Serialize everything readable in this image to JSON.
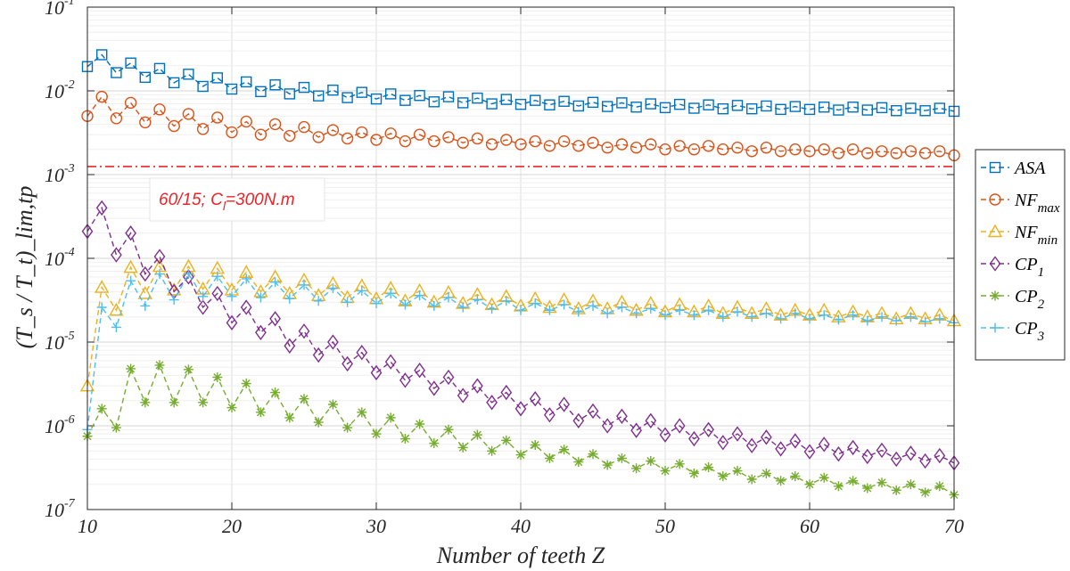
{
  "chart_data": {
    "type": "line",
    "yscale": "log",
    "xlabel": "Number of teeth Z",
    "ylabel": "(T_s / T_t)_lim,tp",
    "xlim": [
      10,
      70
    ],
    "ylim": [
      1e-07,
      0.1
    ],
    "xticks": [
      "10",
      "20",
      "30",
      "40",
      "50",
      "60",
      "70"
    ],
    "yticks": [
      {
        "base": "10",
        "exp": "-7",
        "value": 1e-07
      },
      {
        "base": "10",
        "exp": "-6",
        "value": 1e-06
      },
      {
        "base": "10",
        "exp": "-5",
        "value": 1e-05
      },
      {
        "base": "10",
        "exp": "-4",
        "value": 0.0001
      },
      {
        "base": "10",
        "exp": "-3",
        "value": 0.001
      },
      {
        "base": "10",
        "exp": "-2",
        "value": 0.01
      },
      {
        "base": "10",
        "exp": "-1",
        "value": 0.1
      }
    ],
    "grid": true,
    "legend_position": "right",
    "reference_line": {
      "y": 0.00125,
      "color": "#e8262a",
      "style": "dash-dot"
    },
    "annotation": {
      "text_main": "60/15; C",
      "text_sub": "l",
      "text_tail": "=300N.m",
      "color": "#e8262a"
    },
    "x": [
      10,
      11,
      12,
      13,
      14,
      15,
      16,
      17,
      18,
      19,
      20,
      21,
      22,
      23,
      24,
      25,
      26,
      27,
      28,
      29,
      30,
      31,
      32,
      33,
      34,
      35,
      36,
      37,
      38,
      39,
      40,
      41,
      42,
      43,
      44,
      45,
      46,
      47,
      48,
      49,
      50,
      51,
      52,
      53,
      54,
      55,
      56,
      57,
      58,
      59,
      60,
      61,
      62,
      63,
      64,
      65,
      66,
      67,
      68,
      69,
      70
    ],
    "series": [
      {
        "name": "ASA",
        "label_main": "ASA",
        "label_sub": "",
        "color": "#0072bd",
        "marker": "square",
        "values": [
          0.0195,
          0.027,
          0.0165,
          0.0215,
          0.0145,
          0.0185,
          0.0125,
          0.0158,
          0.0113,
          0.0143,
          0.0105,
          0.0128,
          0.0098,
          0.0118,
          0.0092,
          0.011,
          0.0087,
          0.0102,
          0.0083,
          0.0096,
          0.008,
          0.0092,
          0.0077,
          0.0088,
          0.0074,
          0.0085,
          0.0072,
          0.0082,
          0.007,
          0.0079,
          0.0069,
          0.0077,
          0.0068,
          0.0075,
          0.0066,
          0.0073,
          0.0065,
          0.0072,
          0.0064,
          0.007,
          0.0063,
          0.0069,
          0.0062,
          0.0068,
          0.0061,
          0.0067,
          0.0061,
          0.0066,
          0.006,
          0.0065,
          0.006,
          0.0064,
          0.0059,
          0.0064,
          0.0059,
          0.0063,
          0.0058,
          0.0062,
          0.0058,
          0.0062,
          0.0057
        ]
      },
      {
        "name": "NFmax",
        "label_main": "NF",
        "label_sub": "max",
        "color": "#d95319",
        "marker": "circle",
        "values": [
          0.005,
          0.0085,
          0.0047,
          0.0072,
          0.0042,
          0.006,
          0.0038,
          0.0053,
          0.0035,
          0.0048,
          0.0032,
          0.0043,
          0.003,
          0.004,
          0.0029,
          0.0037,
          0.0028,
          0.0034,
          0.0027,
          0.0032,
          0.0026,
          0.0031,
          0.0025,
          0.003,
          0.0025,
          0.0028,
          0.0024,
          0.0027,
          0.0023,
          0.0026,
          0.0023,
          0.0025,
          0.0022,
          0.0025,
          0.0022,
          0.0024,
          0.0021,
          0.0023,
          0.0021,
          0.0023,
          0.002,
          0.0022,
          0.002,
          0.0022,
          0.002,
          0.0021,
          0.0019,
          0.0021,
          0.0019,
          0.002,
          0.0019,
          0.002,
          0.0018,
          0.002,
          0.0018,
          0.0019,
          0.0018,
          0.0019,
          0.0018,
          0.0019,
          0.0017
        ]
      },
      {
        "name": "NFmin",
        "label_main": "NF",
        "label_sub": "min",
        "color": "#edb120",
        "marker": "triangle",
        "values": [
          3e-06,
          4.5e-05,
          2.4e-05,
          7.8e-05,
          3.8e-05,
          8e-05,
          4.2e-05,
          8e-05,
          4.3e-05,
          7.6e-05,
          4.2e-05,
          6.8e-05,
          4e-05,
          6e-05,
          3.8e-05,
          5.5e-05,
          3.6e-05,
          5e-05,
          3.4e-05,
          4.7e-05,
          3.3e-05,
          4.4e-05,
          3.1e-05,
          4.1e-05,
          3e-05,
          3.9e-05,
          2.9e-05,
          3.7e-05,
          2.8e-05,
          3.5e-05,
          2.7e-05,
          3.3e-05,
          2.6e-05,
          3.2e-05,
          2.5e-05,
          3.1e-05,
          2.5e-05,
          3e-05,
          2.4e-05,
          2.9e-05,
          2.3e-05,
          2.8e-05,
          2.3e-05,
          2.7e-05,
          2.2e-05,
          2.6e-05,
          2.2e-05,
          2.5e-05,
          2.1e-05,
          2.4e-05,
          2.1e-05,
          2.4e-05,
          2e-05,
          2.3e-05,
          2e-05,
          2.2e-05,
          1.9e-05,
          2.2e-05,
          1.9e-05,
          2.1e-05,
          1.8e-05
        ]
      },
      {
        "name": "CP1",
        "label_main": "CP",
        "label_sub": "1",
        "color": "#7e2f8e",
        "marker": "diamond",
        "values": [
          0.00021,
          0.0004,
          0.00011,
          0.0002,
          6.5e-05,
          0.000105,
          4e-05,
          6e-05,
          2.6e-05,
          3.8e-05,
          1.7e-05,
          2.6e-05,
          1.3e-05,
          1.9e-05,
          9e-06,
          1.35e-05,
          7e-06,
          1e-05,
          5.5e-06,
          7.5e-06,
          4.3e-06,
          5.8e-06,
          3.5e-06,
          4.6e-06,
          2.8e-06,
          3.8e-06,
          2.3e-06,
          3e-06,
          1.9e-06,
          2.5e-06,
          1.6e-06,
          2.1e-06,
          1.35e-06,
          1.8e-06,
          1.15e-06,
          1.5e-06,
          1e-06,
          1.3e-06,
          8.8e-07,
          1.15e-06,
          7.8e-07,
          1e-06,
          7e-07,
          9e-07,
          6.3e-07,
          8e-07,
          5.8e-07,
          7.3e-07,
          5.3e-07,
          6.6e-07,
          4.9e-07,
          6e-07,
          4.6e-07,
          5.5e-07,
          4.3e-07,
          5.1e-07,
          4e-07,
          4.7e-07,
          3.8e-07,
          4.4e-07,
          3.6e-07
        ]
      },
      {
        "name": "CP2",
        "label_main": "CP",
        "label_sub": "2",
        "color": "#77ac30",
        "marker": "asterisk",
        "values": [
          7.5e-07,
          1.6e-06,
          9.5e-07,
          4.8e-06,
          1.9e-06,
          5.3e-06,
          1.9e-06,
          4.7e-06,
          1.9e-06,
          3.8e-06,
          1.65e-06,
          3.2e-06,
          1.45e-06,
          2.5e-06,
          1.25e-06,
          2.1e-06,
          1.1e-06,
          1.8e-06,
          9.5e-07,
          1.45e-06,
          8e-07,
          1.25e-06,
          7e-07,
          1.05e-06,
          6.2e-07,
          9e-07,
          5.5e-07,
          7.8e-07,
          5e-07,
          6.7e-07,
          4.5e-07,
          5.9e-07,
          4.1e-07,
          5.2e-07,
          3.7e-07,
          4.6e-07,
          3.4e-07,
          4.1e-07,
          3.1e-07,
          3.8e-07,
          2.9e-07,
          3.5e-07,
          2.7e-07,
          3.2e-07,
          2.5e-07,
          2.9e-07,
          2.3e-07,
          2.7e-07,
          2.2e-07,
          2.5e-07,
          2e-07,
          2.4e-07,
          1.9e-07,
          2.2e-07,
          1.8e-07,
          2.1e-07,
          1.7e-07,
          2e-07,
          1.6e-07,
          1.9e-07,
          1.5e-07
        ]
      },
      {
        "name": "CP3",
        "label_main": "CP",
        "label_sub": "3",
        "color": "#4dbeee",
        "marker": "plus",
        "values": [
          9e-07,
          2.6e-05,
          1.5e-05,
          5.4e-05,
          2.7e-05,
          6.5e-05,
          3.2e-05,
          6.5e-05,
          3.5e-05,
          6.1e-05,
          3.5e-05,
          5.7e-05,
          3.4e-05,
          5.2e-05,
          3.3e-05,
          4.8e-05,
          3.1e-05,
          4.4e-05,
          3e-05,
          4.1e-05,
          2.9e-05,
          3.8e-05,
          2.8e-05,
          3.6e-05,
          2.7e-05,
          3.4e-05,
          2.6e-05,
          3.2e-05,
          2.5e-05,
          3.1e-05,
          2.4e-05,
          2.9e-05,
          2.4e-05,
          2.8e-05,
          2.3e-05,
          2.7e-05,
          2.2e-05,
          2.6e-05,
          2.2e-05,
          2.5e-05,
          2.1e-05,
          2.4e-05,
          2.1e-05,
          2.4e-05,
          2e-05,
          2.3e-05,
          2e-05,
          2.2e-05,
          1.9e-05,
          2.2e-05,
          1.9e-05,
          2.1e-05,
          1.85e-05,
          2.1e-05,
          1.8e-05,
          2e-05,
          1.8e-05,
          2e-05,
          1.75e-05,
          1.9e-05,
          1.7e-05
        ]
      }
    ]
  }
}
